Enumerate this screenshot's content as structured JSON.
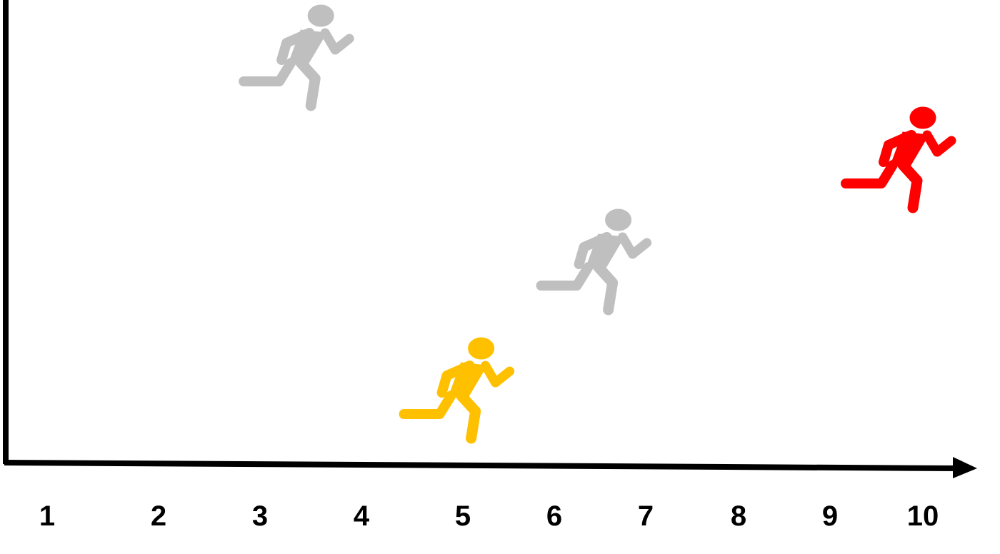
{
  "axis": {
    "color": "#000000",
    "tick_labels": [
      "1",
      "2",
      "3",
      "4",
      "5",
      "6",
      "7",
      "8",
      "9",
      "10"
    ]
  },
  "runners": [
    {
      "icon": "running-person-icon",
      "color": "#BFBFBF",
      "x": 3.6,
      "level": 4
    },
    {
      "icon": "running-person-icon",
      "color": "#BFBFBF",
      "x": 6.7,
      "level": 2
    },
    {
      "icon": "running-person-icon",
      "color": "#FFC000",
      "x": 5.2,
      "level": 1
    },
    {
      "icon": "running-person-icon",
      "color": "#FF0000",
      "x": 10.0,
      "level": 3
    }
  ]
}
